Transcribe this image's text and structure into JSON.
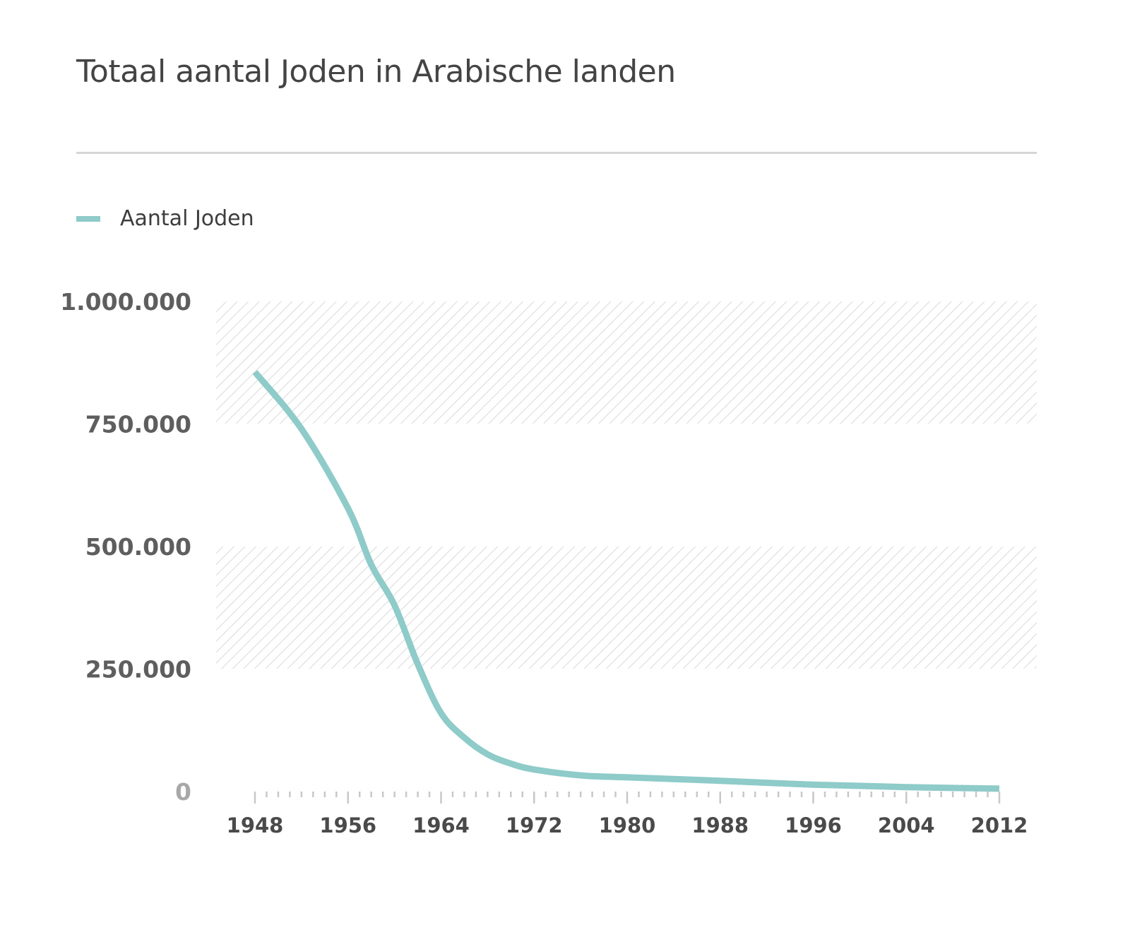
{
  "title": "Totaal aantal Joden in Arabische landen",
  "legend": {
    "items": [
      {
        "label": "Aantal Joden",
        "color": "#8ecbc9"
      }
    ]
  },
  "colors": {
    "line": "#8ecbc9",
    "band_hatch": "#d9d9d9",
    "divider": "#d6d6d6",
    "axis_tick": "#c8c8c8"
  },
  "y_axis": {
    "ticks": [
      "0",
      "250.000",
      "500.000",
      "750.000",
      "1.000.000"
    ]
  },
  "x_axis": {
    "ticks": [
      "1948",
      "1956",
      "1964",
      "1972",
      "1980",
      "1988",
      "1996",
      "2004",
      "2012"
    ]
  },
  "chart_data": {
    "type": "line",
    "title": "Totaal aantal Joden in Arabische landen",
    "xlabel": "",
    "ylabel": "",
    "legend_position": "top-left",
    "grid": "alternating hatched bands (500.000–750.000 unshaded, 750.000–1.000.000 and 250.000–500.000 hatched)",
    "x_ticks": [
      1948,
      1956,
      1964,
      1972,
      1980,
      1988,
      1996,
      2004,
      2012
    ],
    "y_ticks": [
      0,
      250000,
      500000,
      750000,
      1000000
    ],
    "xlim": [
      1948,
      2012
    ],
    "ylim": [
      0,
      1000000
    ],
    "series": [
      {
        "name": "Aantal Joden",
        "x": [
          1948,
          1952,
          1956,
          1958,
          1960,
          1962,
          1964,
          1966,
          1968,
          1970,
          1972,
          1976,
          1980,
          1988,
          1996,
          2004,
          2012
        ],
        "values": [
          856000,
          740000,
          578000,
          463000,
          380000,
          260000,
          160000,
          110000,
          76000,
          57000,
          45000,
          33000,
          29000,
          22000,
          14000,
          9000,
          6000
        ]
      }
    ]
  }
}
